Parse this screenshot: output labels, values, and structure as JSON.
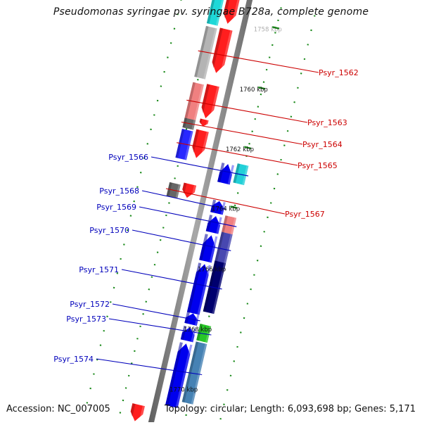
{
  "title": "Pseudomonas syringae pv. syringae B728a, complete genome",
  "footer": {
    "accession": "Accession: NC_007005",
    "summary": "Topology: circular; Length: 6,093,698 bp; Genes: 5,171"
  },
  "colors": {
    "backbone": "#8c8c8c",
    "tick": "#1a8a1a",
    "forward_label": "#cc0000",
    "reverse_label": "#0000bb",
    "axis_text": "#111111"
  },
  "scale_labels": [
    "1758 kbp",
    "1760 kbp",
    "1762 kbp",
    "1764 kbp",
    "1766 kbp",
    "1768 kbp",
    "1770 kbp"
  ],
  "genes": [
    {
      "label": "",
      "strand": "forward",
      "color": "#ff1e1e"
    },
    {
      "label": "",
      "strand": "forward",
      "color": "#1ed8d8"
    },
    {
      "label": "",
      "strand": "forward",
      "color": "#ff1e1e"
    },
    {
      "label": "Psyr_1562",
      "strand": "forward",
      "color": "#b4b4b4"
    },
    {
      "label": "",
      "strand": "forward",
      "color": "#ff1e1e"
    },
    {
      "label": "Psyr_1563",
      "strand": "forward",
      "color": "#f08080"
    },
    {
      "label": "",
      "strand": "forward",
      "color": "#ff1e1e"
    },
    {
      "label": "Psyr_1564",
      "strand": "forward",
      "color": "#666666"
    },
    {
      "label": "",
      "strand": "forward",
      "color": "#ff1e1e"
    },
    {
      "label": "Psyr_1565",
      "strand": "forward",
      "color": "#2828ff"
    },
    {
      "label": "",
      "strand": "forward",
      "color": "#ff1e1e"
    },
    {
      "label": "Psyr_1567",
      "strand": "forward",
      "color": "#666666"
    },
    {
      "label": "Psyr_1566",
      "strand": "reverse",
      "color": "#22d0d8"
    },
    {
      "label": "",
      "strand": "reverse",
      "color": "#0000ee"
    },
    {
      "label": "Psyr_1568",
      "strand": "reverse",
      "color": "#0000ee"
    },
    {
      "label": "Psyr_1569",
      "strand": "reverse",
      "color": "#f08080"
    },
    {
      "label": "",
      "strand": "reverse",
      "color": "#0000ee"
    },
    {
      "label": "Psyr_1570",
      "strand": "reverse",
      "color": "#4848b0"
    },
    {
      "label": "",
      "strand": "reverse",
      "color": "#0000ee"
    },
    {
      "label": "Psyr_1571",
      "strand": "reverse",
      "color": "#00006e"
    },
    {
      "label": "",
      "strand": "reverse",
      "color": "#0000ee"
    },
    {
      "label": "Psyr_1572",
      "strand": "reverse",
      "color": "#0000ee"
    },
    {
      "label": "Psyr_1573",
      "strand": "reverse",
      "color": "#28c828"
    },
    {
      "label": "",
      "strand": "reverse",
      "color": "#0000ee"
    },
    {
      "label": "Psyr_1574",
      "strand": "reverse",
      "color": "#4682b4"
    },
    {
      "label": "",
      "strand": "reverse",
      "color": "#0000ee"
    },
    {
      "label": "",
      "strand": "forward",
      "color": "#ff1e1e"
    }
  ]
}
